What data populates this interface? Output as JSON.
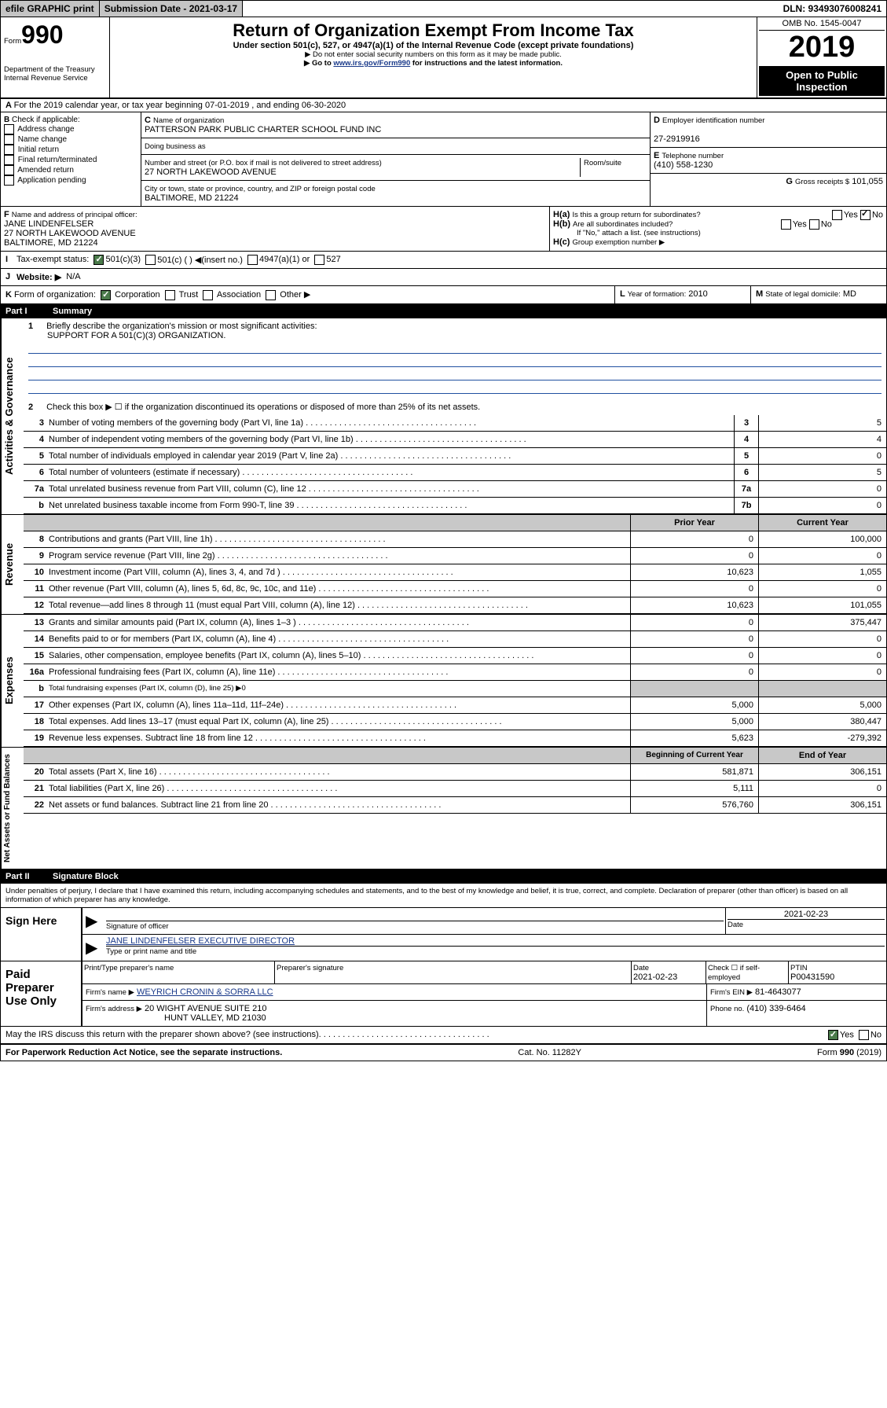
{
  "topbar": {
    "efile": "efile GRAPHIC print",
    "subdate_label": "Submission Date - 2021-03-17",
    "dln": "DLN: 93493076008241"
  },
  "header": {
    "form_label": "Form",
    "form_number": "990",
    "dept": "Department of the Treasury\nInternal Revenue Service",
    "title": "Return of Organization Exempt From Income Tax",
    "subtitle": "Under section 501(c), 527, or 4947(a)(1) of the Internal Revenue Code (except private foundations)",
    "note1": "▶ Do not enter social security numbers on this form as it may be made public.",
    "note2_pre": "▶ Go to ",
    "note2_link": "www.irs.gov/Form990",
    "note2_post": " for instructions and the latest information.",
    "omb": "OMB No. 1545-0047",
    "year": "2019",
    "inspection": "Open to Public Inspection"
  },
  "A": {
    "text": "For the 2019 calendar year, or tax year beginning 07-01-2019   , and ending 06-30-2020"
  },
  "B": {
    "label": "Check if applicable:",
    "opts": [
      "Address change",
      "Name change",
      "Initial return",
      "Final return/terminated",
      "Amended return",
      "Application pending"
    ]
  },
  "C": {
    "name_label": "Name of organization",
    "name": "PATTERSON PARK PUBLIC CHARTER SCHOOL FUND INC",
    "dba_label": "Doing business as",
    "addr_label": "Number and street (or P.O. box if mail is not delivered to street address)",
    "room_label": "Room/suite",
    "addr": "27 NORTH LAKEWOOD AVENUE",
    "city_label": "City or town, state or province, country, and ZIP or foreign postal code",
    "city": "BALTIMORE, MD  21224"
  },
  "D": {
    "label": "Employer identification number",
    "val": "27-2919916"
  },
  "E": {
    "label": "Telephone number",
    "val": "(410) 558-1230"
  },
  "G": {
    "label": "Gross receipts $",
    "val": "101,055"
  },
  "F": {
    "label": "Name and address of principal officer:",
    "name": "JANE LINDENFELSER",
    "addr1": "27 NORTH LAKEWOOD AVENUE",
    "addr2": "BALTIMORE, MD  21224"
  },
  "H": {
    "a": "Is this a group return for subordinates?",
    "b": "Are all subordinates included?",
    "bnote": "If \"No,\" attach a list. (see instructions)",
    "c": "Group exemption number ▶"
  },
  "I": {
    "label": "Tax-exempt status:",
    "opts": [
      "501(c)(3)",
      "501(c) (  ) ◀(insert no.)",
      "4947(a)(1) or",
      "527"
    ]
  },
  "J": {
    "label": "Website: ▶",
    "val": "N/A"
  },
  "K": {
    "label": "Form of organization:",
    "opts": [
      "Corporation",
      "Trust",
      "Association",
      "Other ▶"
    ]
  },
  "L": {
    "label": "Year of formation:",
    "val": "2010"
  },
  "M": {
    "label": "State of legal domicile:",
    "val": "MD"
  },
  "partI": {
    "label": "Part I",
    "title": "Summary",
    "side_ag": "Activities & Governance",
    "side_rev": "Revenue",
    "side_exp": "Expenses",
    "side_net": "Net Assets or Fund Balances",
    "line1_label": "Briefly describe the organization's mission or most significant activities:",
    "line1_val": "SUPPORT FOR A 501(C)(3) ORGANIZATION.",
    "line2": "Check this box ▶ ☐  if the organization discontinued its operations or disposed of more than 25% of its net assets.",
    "lines_ag": [
      {
        "n": "3",
        "d": "Number of voting members of the governing body (Part VI, line 1a)",
        "b": "3",
        "v": "5"
      },
      {
        "n": "4",
        "d": "Number of independent voting members of the governing body (Part VI, line 1b)",
        "b": "4",
        "v": "4"
      },
      {
        "n": "5",
        "d": "Total number of individuals employed in calendar year 2019 (Part V, line 2a)",
        "b": "5",
        "v": "0"
      },
      {
        "n": "6",
        "d": "Total number of volunteers (estimate if necessary)",
        "b": "6",
        "v": "5"
      },
      {
        "n": "7a",
        "d": "Total unrelated business revenue from Part VIII, column (C), line 12",
        "b": "7a",
        "v": "0"
      },
      {
        "n": "b",
        "d": "Net unrelated business taxable income from Form 990-T, line 39",
        "b": "7b",
        "v": "0"
      }
    ],
    "col_prior": "Prior Year",
    "col_current": "Current Year",
    "lines_rev": [
      {
        "n": "8",
        "d": "Contributions and grants (Part VIII, line 1h)",
        "p": "0",
        "c": "100,000"
      },
      {
        "n": "9",
        "d": "Program service revenue (Part VIII, line 2g)",
        "p": "0",
        "c": "0"
      },
      {
        "n": "10",
        "d": "Investment income (Part VIII, column (A), lines 3, 4, and 7d )",
        "p": "10,623",
        "c": "1,055"
      },
      {
        "n": "11",
        "d": "Other revenue (Part VIII, column (A), lines 5, 6d, 8c, 9c, 10c, and 11e)",
        "p": "0",
        "c": "0"
      },
      {
        "n": "12",
        "d": "Total revenue—add lines 8 through 11 (must equal Part VIII, column (A), line 12)",
        "p": "10,623",
        "c": "101,055"
      }
    ],
    "lines_exp": [
      {
        "n": "13",
        "d": "Grants and similar amounts paid (Part IX, column (A), lines 1–3 )",
        "p": "0",
        "c": "375,447"
      },
      {
        "n": "14",
        "d": "Benefits paid to or for members (Part IX, column (A), line 4)",
        "p": "0",
        "c": "0"
      },
      {
        "n": "15",
        "d": "Salaries, other compensation, employee benefits (Part IX, column (A), lines 5–10)",
        "p": "0",
        "c": "0"
      },
      {
        "n": "16a",
        "d": "Professional fundraising fees (Part IX, column (A), line 11e)",
        "p": "0",
        "c": "0"
      }
    ],
    "line16b": "Total fundraising expenses (Part IX, column (D), line 25) ▶0",
    "lines_exp2": [
      {
        "n": "17",
        "d": "Other expenses (Part IX, column (A), lines 11a–11d, 11f–24e)",
        "p": "5,000",
        "c": "5,000"
      },
      {
        "n": "18",
        "d": "Total expenses. Add lines 13–17 (must equal Part IX, column (A), line 25)",
        "p": "5,000",
        "c": "380,447"
      },
      {
        "n": "19",
        "d": "Revenue less expenses. Subtract line 18 from line 12",
        "p": "5,623",
        "c": "-279,392"
      }
    ],
    "col_beg": "Beginning of Current Year",
    "col_end": "End of Year",
    "lines_net": [
      {
        "n": "20",
        "d": "Total assets (Part X, line 16)",
        "p": "581,871",
        "c": "306,151"
      },
      {
        "n": "21",
        "d": "Total liabilities (Part X, line 26)",
        "p": "5,111",
        "c": "0"
      },
      {
        "n": "22",
        "d": "Net assets or fund balances. Subtract line 21 from line 20",
        "p": "576,760",
        "c": "306,151"
      }
    ]
  },
  "partII": {
    "label": "Part II",
    "title": "Signature Block",
    "perjury": "Under penalties of perjury, I declare that I have examined this return, including accompanying schedules and statements, and to the best of my knowledge and belief, it is true, correct, and complete. Declaration of preparer (other than officer) is based on all information of which preparer has any knowledge.",
    "sign_here": "Sign Here",
    "sig_officer": "Signature of officer",
    "sig_date": "2021-02-23",
    "date_label": "Date",
    "officer_name": "JANE LINDENFELSER EXECUTIVE DIRECTOR",
    "name_label": "Type or print name and title",
    "paid": "Paid Preparer Use Only",
    "prep_name_label": "Print/Type preparer's name",
    "prep_sig_label": "Preparer's signature",
    "prep_date_label": "Date",
    "prep_date": "2021-02-23",
    "self_emp": "Check ☐ if self-employed",
    "ptin_label": "PTIN",
    "ptin": "P00431590",
    "firm_name_label": "Firm's name    ▶",
    "firm_name": "WEYRICH CRONIN & SORRA LLC",
    "firm_ein_label": "Firm's EIN ▶",
    "firm_ein": "81-4643077",
    "firm_addr_label": "Firm's address ▶",
    "firm_addr1": "20 WIGHT AVENUE SUITE 210",
    "firm_addr2": "HUNT VALLEY, MD  21030",
    "phone_label": "Phone no.",
    "phone": "(410) 339-6464",
    "discuss": "May the IRS discuss this return with the preparer shown above? (see instructions)"
  },
  "footer": {
    "left": "For Paperwork Reduction Act Notice, see the separate instructions.",
    "mid": "Cat. No. 11282Y",
    "right": "Form 990 (2019)"
  }
}
